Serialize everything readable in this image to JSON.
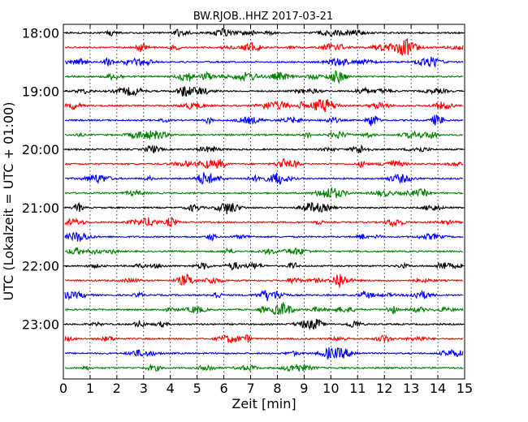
{
  "chart_data": {
    "type": "line",
    "title": "BW.RJOB..HHZ 2017-03-21",
    "xlabel": "Zeit  [min]",
    "ylabel": "UTC (Lokalzeit = UTC + 01:00)",
    "xlim": [
      0,
      15
    ],
    "xticks": [
      "0",
      "1",
      "2",
      "3",
      "4",
      "5",
      "6",
      "7",
      "8",
      "9",
      "10",
      "11",
      "12",
      "13",
      "14",
      "15"
    ],
    "yticks": [
      {
        "label": "18:00",
        "row": 0
      },
      {
        "label": "19:00",
        "row": 4
      },
      {
        "label": "20:00",
        "row": 8
      },
      {
        "label": "21:00",
        "row": 12
      },
      {
        "label": "22:00",
        "row": 16
      },
      {
        "label": "23:00",
        "row": 20
      }
    ],
    "trace_minutes": 15,
    "row_count": 24,
    "row_colors": [
      "#000000",
      "#ff0000",
      "#0000ff",
      "#008000"
    ],
    "grid": "vertical dotted"
  }
}
